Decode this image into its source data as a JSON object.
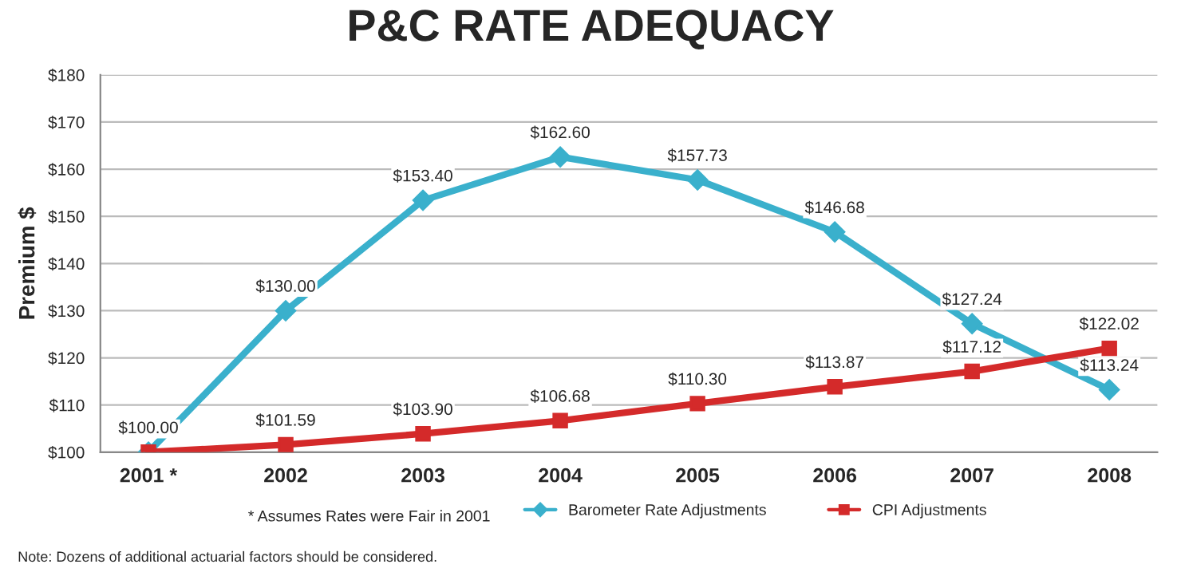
{
  "chart_data": {
    "type": "line",
    "title": "P&C RATE ADEQUACY",
    "ylabel": "Premium $",
    "categories": [
      "2001 *",
      "2002",
      "2003",
      "2004",
      "2005",
      "2006",
      "2007",
      "2008"
    ],
    "series": [
      {
        "name": "Barometer Rate Adjustments",
        "color": "#3ab0cc",
        "marker": "diamond",
        "values": [
          100.0,
          130.0,
          153.4,
          162.6,
          157.73,
          146.68,
          127.24,
          113.24
        ],
        "value_labels": [
          "$100.00",
          "$130.00",
          "$153.40",
          "$162.60",
          "$157.73",
          "$146.68",
          "$127.24",
          "$113.24"
        ]
      },
      {
        "name": "CPI Adjustments",
        "color": "#d42a2a",
        "marker": "square",
        "values": [
          100.0,
          101.59,
          103.9,
          106.68,
          110.3,
          113.87,
          117.12,
          122.02
        ],
        "value_labels": [
          null,
          "$101.59",
          "$103.90",
          "$106.68",
          "$110.30",
          "$113.87",
          "$117.12",
          "$122.02"
        ]
      }
    ],
    "ylim": [
      100,
      180
    ],
    "yticks": [
      {
        "value": 100,
        "label": "$100"
      },
      {
        "value": 110,
        "label": "$110"
      },
      {
        "value": 120,
        "label": "$120"
      },
      {
        "value": 130,
        "label": "$130"
      },
      {
        "value": 140,
        "label": "$140"
      },
      {
        "value": 150,
        "label": "$150"
      },
      {
        "value": 160,
        "label": "$160"
      },
      {
        "value": 170,
        "label": "$170"
      },
      {
        "value": 180,
        "label": "$180"
      }
    ],
    "grid": "y",
    "legend": "bottom",
    "line_style": "solid",
    "annotations": [
      "* Assumes Rates were Fair in 2001",
      "Note: Dozens of additional actuarial factors should be considered."
    ]
  }
}
